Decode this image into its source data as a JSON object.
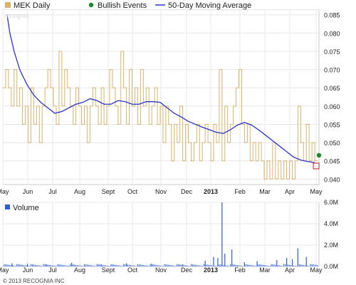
{
  "chart_data": [
    {
      "type": "line",
      "legend": [
        {
          "name": "MEK Daily",
          "color": "#d9b36a"
        },
        {
          "name": "Bullish Events",
          "color": "#1a8c2a"
        },
        {
          "name": "50-Day Moving Average",
          "color": "#2a35c8"
        }
      ],
      "watermark": "recognia",
      "x_ticks": [
        "May",
        "Jun",
        "Jul",
        "Aug",
        "Sept",
        "Oct",
        "Nov",
        "Dec",
        "2013",
        "Feb",
        "Mar",
        "Apr",
        "May"
      ],
      "y_ticks": [
        "0.085",
        "0.080",
        "0.075",
        "0.070",
        "0.065",
        "0.060",
        "0.055",
        "0.050",
        "0.045",
        "0.040"
      ],
      "ylim": [
        0.0385,
        0.0865
      ],
      "grid": true,
      "price_series": [
        [
          0,
          0.065
        ],
        [
          4,
          0.07
        ],
        [
          8,
          0.065
        ],
        [
          12,
          0.06
        ],
        [
          16,
          0.07
        ],
        [
          20,
          0.06
        ],
        [
          24,
          0.065
        ],
        [
          28,
          0.055
        ],
        [
          32,
          0.06
        ],
        [
          36,
          0.05
        ],
        [
          40,
          0.065
        ],
        [
          44,
          0.055
        ],
        [
          48,
          0.06
        ],
        [
          52,
          0.05
        ],
        [
          56,
          0.06
        ],
        [
          60,
          0.065
        ],
        [
          64,
          0.07
        ],
        [
          68,
          0.065
        ],
        [
          72,
          0.06
        ],
        [
          76,
          0.055
        ],
        [
          80,
          0.075
        ],
        [
          84,
          0.06
        ],
        [
          88,
          0.07
        ],
        [
          92,
          0.065
        ],
        [
          96,
          0.06
        ],
        [
          100,
          0.055
        ],
        [
          104,
          0.065
        ],
        [
          108,
          0.06
        ],
        [
          112,
          0.055
        ],
        [
          116,
          0.06
        ],
        [
          120,
          0.05
        ],
        [
          124,
          0.06
        ],
        [
          128,
          0.065
        ],
        [
          132,
          0.06
        ],
        [
          136,
          0.055
        ],
        [
          140,
          0.065
        ],
        [
          144,
          0.055
        ],
        [
          148,
          0.06
        ],
        [
          152,
          0.07
        ],
        [
          156,
          0.065
        ],
        [
          160,
          0.06
        ],
        [
          164,
          0.055
        ],
        [
          168,
          0.075
        ],
        [
          172,
          0.065
        ],
        [
          176,
          0.055
        ],
        [
          180,
          0.07
        ],
        [
          184,
          0.06
        ],
        [
          188,
          0.065
        ],
        [
          192,
          0.055
        ],
        [
          196,
          0.07
        ],
        [
          200,
          0.06
        ],
        [
          204,
          0.065
        ],
        [
          208,
          0.055
        ],
        [
          212,
          0.06
        ],
        [
          216,
          0.065
        ],
        [
          220,
          0.055
        ],
        [
          224,
          0.06
        ],
        [
          228,
          0.05
        ],
        [
          232,
          0.06
        ],
        [
          236,
          0.055
        ],
        [
          240,
          0.045
        ],
        [
          244,
          0.055
        ],
        [
          248,
          0.05
        ],
        [
          252,
          0.06
        ],
        [
          256,
          0.045
        ],
        [
          260,
          0.055
        ],
        [
          264,
          0.05
        ],
        [
          268,
          0.045
        ],
        [
          272,
          0.05
        ],
        [
          276,
          0.055
        ],
        [
          280,
          0.045
        ],
        [
          284,
          0.05
        ],
        [
          288,
          0.055
        ],
        [
          292,
          0.05
        ],
        [
          296,
          0.045
        ],
        [
          300,
          0.055
        ],
        [
          304,
          0.05
        ],
        [
          308,
          0.07
        ],
        [
          312,
          0.045
        ],
        [
          316,
          0.06
        ],
        [
          320,
          0.05
        ],
        [
          324,
          0.055
        ],
        [
          328,
          0.06
        ],
        [
          332,
          0.065
        ],
        [
          336,
          0.07
        ],
        [
          340,
          0.055
        ],
        [
          344,
          0.05
        ],
        [
          348,
          0.055
        ],
        [
          352,
          0.045
        ],
        [
          356,
          0.05
        ],
        [
          360,
          0.045
        ],
        [
          364,
          0.05
        ],
        [
          368,
          0.045
        ],
        [
          372,
          0.04
        ],
        [
          376,
          0.045
        ],
        [
          380,
          0.04
        ],
        [
          384,
          0.05
        ],
        [
          388,
          0.04
        ],
        [
          392,
          0.045
        ],
        [
          396,
          0.04
        ],
        [
          400,
          0.045
        ],
        [
          404,
          0.04
        ],
        [
          408,
          0.045
        ],
        [
          412,
          0.04
        ],
        [
          416,
          0.045
        ],
        [
          420,
          0.06
        ],
        [
          424,
          0.05
        ],
        [
          428,
          0.045
        ],
        [
          432,
          0.055
        ],
        [
          436,
          0.045
        ],
        [
          440,
          0.05
        ],
        [
          444,
          0.045
        ]
      ],
      "ma_series": [
        [
          6,
          0.085
        ],
        [
          10,
          0.08
        ],
        [
          16,
          0.075
        ],
        [
          24,
          0.07
        ],
        [
          34,
          0.066
        ],
        [
          44,
          0.063
        ],
        [
          54,
          0.061
        ],
        [
          64,
          0.0595
        ],
        [
          74,
          0.058
        ],
        [
          84,
          0.0585
        ],
        [
          94,
          0.0595
        ],
        [
          104,
          0.0605
        ],
        [
          114,
          0.061
        ],
        [
          124,
          0.062
        ],
        [
          134,
          0.0615
        ],
        [
          144,
          0.0605
        ],
        [
          154,
          0.0605
        ],
        [
          164,
          0.0615
        ],
        [
          174,
          0.0612
        ],
        [
          184,
          0.0605
        ],
        [
          194,
          0.0605
        ],
        [
          204,
          0.0612
        ],
        [
          214,
          0.0612
        ],
        [
          224,
          0.061
        ],
        [
          234,
          0.0595
        ],
        [
          244,
          0.058
        ],
        [
          254,
          0.057
        ],
        [
          264,
          0.0558
        ],
        [
          274,
          0.055
        ],
        [
          284,
          0.0542
        ],
        [
          294,
          0.0535
        ],
        [
          304,
          0.0528
        ],
        [
          314,
          0.0525
        ],
        [
          324,
          0.0535
        ],
        [
          334,
          0.0548
        ],
        [
          344,
          0.0555
        ],
        [
          354,
          0.0548
        ],
        [
          364,
          0.0535
        ],
        [
          374,
          0.052
        ],
        [
          384,
          0.0505
        ],
        [
          394,
          0.049
        ],
        [
          404,
          0.0475
        ],
        [
          414,
          0.046
        ],
        [
          424,
          0.0452
        ],
        [
          434,
          0.0448
        ],
        [
          444,
          0.0445
        ]
      ],
      "bullish_events": [
        [
          450,
          0.0465
        ]
      ],
      "last_price_marker": [
        444,
        0.0432
      ]
    },
    {
      "type": "bar",
      "legend": [
        {
          "name": "Volume",
          "color": "#2a5fd6"
        }
      ],
      "x_ticks": [
        "May",
        "Jun",
        "Jul",
        "Aug",
        "Sept",
        "Oct",
        "Nov",
        "Dec",
        "2013",
        "Feb",
        "Mar",
        "Apr",
        "May"
      ],
      "y_ticks": [
        "6.0M",
        "4.0M",
        "2.0M",
        "0.0M"
      ],
      "ylim": [
        0,
        6.0
      ],
      "volume_spikes_millions": [
        [
          13,
          0.3
        ],
        [
          35,
          0.25
        ],
        [
          62,
          0.2
        ],
        [
          98,
          0.35
        ],
        [
          140,
          0.2
        ],
        [
          176,
          0.3
        ],
        [
          212,
          0.25
        ],
        [
          256,
          0.2
        ],
        [
          288,
          0.55
        ],
        [
          300,
          0.9
        ],
        [
          306,
          0.8
        ],
        [
          312,
          6.0
        ],
        [
          316,
          1.2
        ],
        [
          326,
          1.6
        ],
        [
          344,
          0.4
        ],
        [
          362,
          0.5
        ],
        [
          390,
          0.6
        ],
        [
          404,
          0.8
        ],
        [
          412,
          0.7
        ],
        [
          420,
          1.7
        ],
        [
          432,
          0.9
        ]
      ],
      "copyright": "© 2013 RECOGNIA INC"
    }
  ]
}
